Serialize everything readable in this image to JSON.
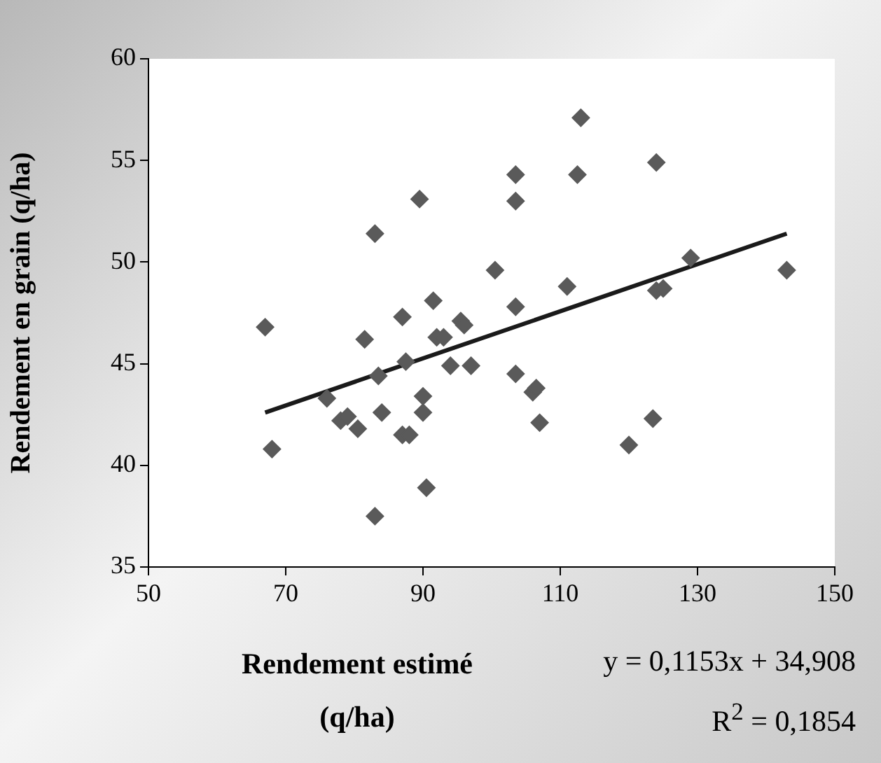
{
  "chart_data": {
    "type": "scatter",
    "xlabel": "Rendement estimé (q/ha)",
    "ylabel": "Rendement en grain (q/ha)",
    "xlim": [
      50,
      150
    ],
    "xticks": [
      50,
      70,
      90,
      110,
      130,
      150
    ],
    "ylim": [
      35,
      60
    ],
    "yticks": [
      35,
      40,
      45,
      50,
      55,
      60
    ],
    "grid": false,
    "legend": false,
    "marker": "diamond",
    "series": [
      {
        "type": "scatter",
        "color": "#5a5a5a",
        "x": [
          67,
          68,
          76,
          78,
          79,
          80.5,
          81.5,
          83,
          83,
          83.5,
          84,
          87,
          87,
          87.5,
          88,
          89.5,
          90,
          90,
          90.5,
          91.5,
          92,
          93,
          94,
          95.5,
          96,
          97,
          100.5,
          103.5,
          103.5,
          103.5,
          103.5,
          106,
          106.5,
          107,
          111,
          112.5,
          113,
          120,
          123.5,
          124,
          124,
          125,
          129,
          143
        ],
        "values": [
          46.8,
          40.8,
          43.3,
          42.2,
          42.4,
          41.8,
          46.2,
          51.4,
          37.5,
          44.4,
          42.6,
          47.3,
          41.5,
          45.1,
          41.5,
          53.1,
          43.4,
          42.6,
          38.9,
          48.1,
          46.3,
          46.3,
          44.9,
          47.1,
          46.9,
          44.9,
          49.6,
          53,
          54.3,
          47.8,
          44.5,
          43.6,
          43.8,
          42.1,
          48.8,
          54.3,
          57.1,
          41,
          42.3,
          54.9,
          48.6,
          48.7,
          50.2,
          49.6
        ]
      },
      {
        "type": "line",
        "color": "#1a1a1a",
        "line_style": "solid",
        "marker": "none",
        "x": [
          67,
          143
        ],
        "values": [
          42.6,
          51.4
        ]
      }
    ],
    "annotations": [
      "y = 0,1153x + 34,908",
      "R$^{2}$ = 0,1854"
    ]
  }
}
